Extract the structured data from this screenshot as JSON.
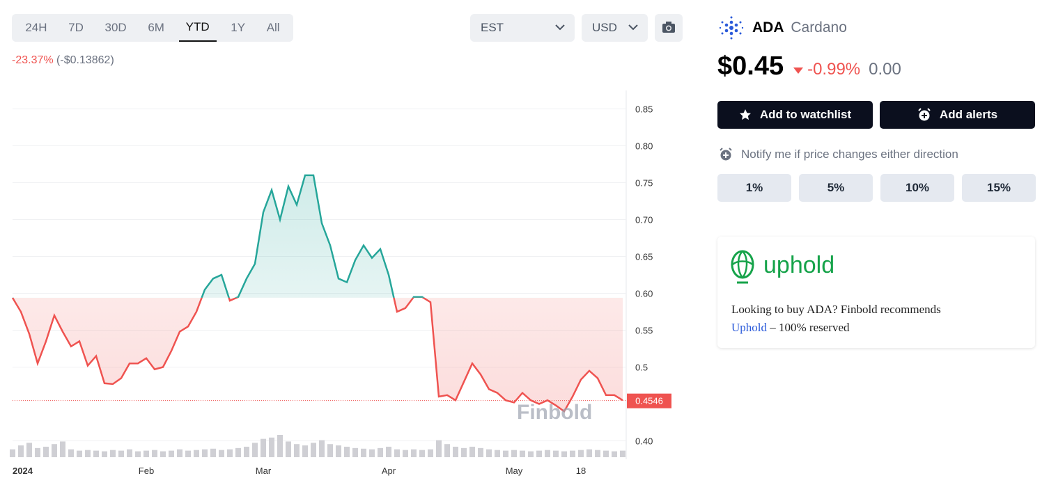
{
  "toolbar": {
    "ranges": [
      "24H",
      "7D",
      "30D",
      "6M",
      "YTD",
      "1Y",
      "All"
    ],
    "active_range": "YTD",
    "timezone": "EST",
    "currency": "USD"
  },
  "change": {
    "percent": "-23.37%",
    "amount": "(-$0.13862)"
  },
  "chart_data": {
    "type": "line",
    "categories": [
      "2024",
      null,
      null,
      null,
      null,
      null,
      null,
      null,
      null,
      null,
      null,
      null,
      null,
      null,
      null,
      null,
      "Feb",
      null,
      null,
      null,
      null,
      null,
      null,
      null,
      null,
      null,
      null,
      null,
      null,
      null,
      "Mar",
      null,
      null,
      null,
      null,
      null,
      null,
      null,
      null,
      null,
      null,
      null,
      null,
      null,
      null,
      "Apr",
      null,
      null,
      null,
      null,
      null,
      null,
      null,
      null,
      null,
      null,
      null,
      null,
      null,
      null,
      "May",
      null,
      null,
      null,
      null,
      null,
      null,
      null,
      "18",
      null,
      null,
      null,
      null,
      null
    ],
    "series": [
      {
        "name": "Price",
        "color": "#26a69a",
        "values": [
          0.594,
          0.575,
          0.545,
          0.505,
          0.535,
          0.57,
          0.548,
          0.528,
          0.535,
          0.502,
          0.515,
          0.478,
          0.477,
          0.485,
          0.505,
          0.505,
          0.512,
          0.497,
          0.5,
          0.522,
          0.548,
          0.555,
          0.575,
          0.605,
          0.62,
          0.625,
          0.59,
          0.595,
          0.62,
          0.64,
          0.71,
          0.74,
          0.7,
          0.745,
          0.72,
          0.76,
          0.76,
          0.695,
          0.665,
          0.62,
          0.615,
          0.645,
          0.665,
          0.648,
          0.66,
          0.625,
          0.575,
          0.58,
          0.595,
          0.595,
          0.588,
          0.46,
          0.462,
          0.455,
          0.48,
          0.505,
          0.49,
          0.47,
          0.465,
          0.455,
          0.452,
          0.465,
          0.455,
          0.45,
          0.455,
          0.448,
          0.44,
          0.46,
          0.483,
          0.495,
          0.485,
          0.462,
          0.462,
          0.455
        ]
      },
      {
        "name": "Volume",
        "color": "#cfcfd4",
        "values": [
          12,
          18,
          22,
          14,
          16,
          20,
          24,
          12,
          10,
          11,
          10,
          9,
          11,
          10,
          12,
          9,
          10,
          11,
          9,
          10,
          12,
          10,
          11,
          12,
          13,
          11,
          12,
          14,
          16,
          22,
          28,
          30,
          34,
          24,
          20,
          18,
          22,
          26,
          20,
          18,
          16,
          14,
          13,
          12,
          14,
          16,
          12,
          11,
          12,
          11,
          12,
          26,
          20,
          16,
          14,
          16,
          14,
          12,
          11,
          10,
          11,
          10,
          9,
          10,
          11,
          10,
          9,
          10,
          11,
          12,
          11,
          10,
          9,
          10
        ]
      }
    ],
    "down_color": "#ef5350",
    "ylim": [
      0.375,
      0.875
    ],
    "yticks": [
      {
        "value": 0.4,
        "label": "0.40"
      },
      0.5,
      {
        "value": 0.55,
        "label": "0.55"
      },
      {
        "value": 0.6,
        "label": "0.60"
      },
      {
        "value": 0.65,
        "label": "0.65"
      },
      {
        "value": 0.7,
        "label": "0.70"
      },
      {
        "value": 0.75,
        "label": "0.75"
      },
      {
        "value": 0.8,
        "label": "0.80"
      },
      {
        "value": 0.85,
        "label": "0.85"
      }
    ],
    "last_price": {
      "value": 0.4546,
      "label": "0.4546"
    },
    "watermark": "Finbold",
    "grid": true
  },
  "coin": {
    "symbol": "ADA",
    "name": "Cardano",
    "price": "$0.45",
    "change_percent": "-0.99%",
    "change_value": "0.00"
  },
  "actions": {
    "watchlist": "Add to watchlist",
    "alerts": "Add alerts",
    "notify": "Notify me if price changes either direction",
    "thresholds": [
      "1%",
      "5%",
      "10%",
      "15%"
    ]
  },
  "promo": {
    "brand": "uphold",
    "text": "Looking to buy ADA? Finbold recommends",
    "link": "Uphold",
    "suffix": "– 100% reserved"
  }
}
